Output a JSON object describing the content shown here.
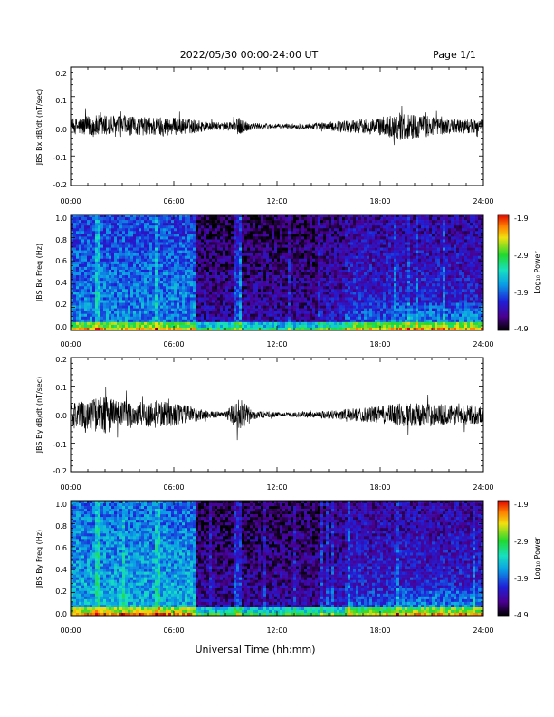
{
  "header": {
    "title": "2022/05/30  00:00-24:00 UT",
    "page": "Page 1/1"
  },
  "xlabel": "Universal Time (hh:mm)",
  "x_ticks": [
    "00:00",
    "06:00",
    "12:00",
    "18:00",
    "24:00"
  ],
  "colorbar": {
    "label": "Log₁₀ Power",
    "ticks": [
      "-1.9",
      "-2.9",
      "-3.9",
      "-4.9"
    ]
  },
  "chart_data": [
    {
      "type": "line",
      "ylabel": "JBS Bx dB/dt (nT/sec)",
      "xlim": [
        0,
        24
      ],
      "ylim": [
        -0.2,
        0.2
      ],
      "yticks": [
        "0.2",
        "0.1",
        "0.0",
        "-0.1",
        "-0.2"
      ],
      "envelope": {
        "x_hours": [
          0,
          1,
          2,
          3,
          4,
          5,
          6,
          7,
          8,
          9,
          9.8,
          10.5,
          11,
          12,
          13,
          14,
          15,
          16,
          17,
          18,
          19,
          19.5,
          20,
          21,
          22,
          23,
          24
        ],
        "amplitude": [
          0.025,
          0.035,
          0.04,
          0.035,
          0.03,
          0.035,
          0.03,
          0.025,
          0.015,
          0.012,
          0.03,
          0.012,
          0.01,
          0.008,
          0.008,
          0.01,
          0.015,
          0.02,
          0.025,
          0.03,
          0.045,
          0.05,
          0.04,
          0.035,
          0.025,
          0.025,
          0.02
        ]
      }
    },
    {
      "type": "heatmap",
      "ylabel": "JBS Bx Freq (Hz)",
      "xlim": [
        0,
        24
      ],
      "ylim": [
        0,
        1.0
      ],
      "yticks": [
        "1.0",
        "0.8",
        "0.6",
        "0.4",
        "0.2",
        "0.0"
      ],
      "zlim": [
        -4.9,
        -1.9
      ]
    },
    {
      "type": "line",
      "ylabel": "JBS By dB/dt (nT/sec)",
      "xlim": [
        0,
        24
      ],
      "ylim": [
        -0.2,
        0.2
      ],
      "yticks": [
        "0.2",
        "0.1",
        "0.0",
        "-0.1",
        "-0.2"
      ],
      "envelope": {
        "x_hours": [
          0,
          1,
          2,
          3,
          4,
          5,
          6,
          7,
          8,
          9,
          9.8,
          10.5,
          11,
          12,
          13,
          14,
          15,
          16,
          17,
          18,
          19,
          19.5,
          20,
          21,
          22,
          23,
          24
        ],
        "amplitude": [
          0.04,
          0.05,
          0.07,
          0.05,
          0.045,
          0.05,
          0.04,
          0.03,
          0.012,
          0.01,
          0.06,
          0.02,
          0.012,
          0.008,
          0.008,
          0.01,
          0.015,
          0.02,
          0.025,
          0.03,
          0.04,
          0.045,
          0.04,
          0.04,
          0.035,
          0.035,
          0.03
        ]
      }
    },
    {
      "type": "heatmap",
      "ylabel": "JBS By Freq (Hz)",
      "xlim": [
        0,
        24
      ],
      "ylim": [
        0,
        1.0
      ],
      "yticks": [
        "1.0",
        "0.8",
        "0.6",
        "0.4",
        "0.2",
        "0.0"
      ],
      "zlim": [
        -4.9,
        -1.9
      ]
    }
  ]
}
